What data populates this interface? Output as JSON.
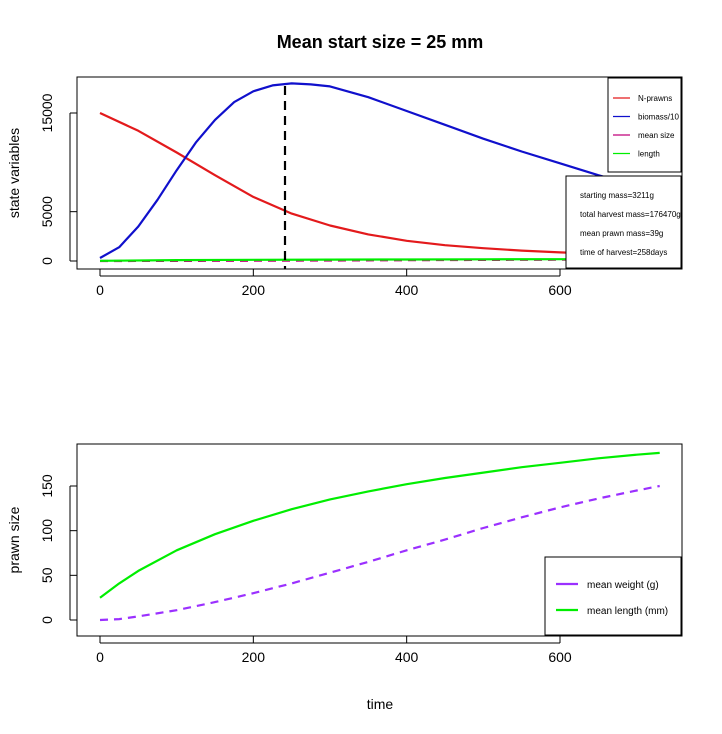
{
  "title": "Mean start size = 25 mm",
  "colors": {
    "n_prawns": "#e31a1c",
    "biomass": "#1010cc",
    "mean_size": "#c0007a",
    "length": "#00ee00",
    "weight": "#9b30ff"
  },
  "chart_data": [
    {
      "type": "line",
      "ylabel": "state variables",
      "xlim": [
        0,
        730
      ],
      "ylim": [
        0,
        18000
      ],
      "xticks": [
        0,
        200,
        400,
        600
      ],
      "yticks": [
        0,
        5000,
        15000
      ],
      "series": [
        {
          "name": "N-prawns",
          "color": "#e31a1c",
          "style": "solid",
          "x": [
            0,
            50,
            100,
            150,
            200,
            250,
            300,
            350,
            400,
            450,
            500,
            550,
            600,
            650,
            700
          ],
          "y": [
            15000,
            13200,
            11000,
            8700,
            6500,
            4800,
            3600,
            2700,
            2050,
            1600,
            1300,
            1050,
            870,
            730,
            620
          ]
        },
        {
          "name": "biomass/10",
          "color": "#1010cc",
          "style": "solid",
          "x": [
            0,
            25,
            50,
            75,
            100,
            125,
            150,
            175,
            200,
            225,
            250,
            275,
            300,
            350,
            400,
            450,
            500,
            550,
            600,
            650,
            700
          ],
          "y": [
            300,
            1400,
            3500,
            6200,
            9200,
            12000,
            14300,
            16100,
            17200,
            17800,
            18000,
            17900,
            17700,
            16600,
            15200,
            13800,
            12400,
            11100,
            9900,
            8700,
            7600
          ]
        },
        {
          "name": "mean size",
          "color": "#c0007a",
          "style": "dashed",
          "x": [
            0,
            100,
            200,
            300,
            400,
            500,
            600,
            700
          ],
          "y": [
            1,
            8,
            27,
            55,
            80,
            110,
            135,
            150
          ]
        },
        {
          "name": "length",
          "color": "#00ee00",
          "style": "solid",
          "x": [
            0,
            100,
            200,
            300,
            400,
            500,
            600,
            700
          ],
          "y": [
            25,
            90,
            120,
            140,
            155,
            168,
            178,
            186
          ]
        }
      ],
      "harvest_marker_x": 240,
      "legend_position": "top-right",
      "info": {
        "starting_mass": "starting mass=3211g",
        "total_harvest_mass": "total harvest mass=176470g",
        "mean_prawn_mass": "mean prawn mass=39g",
        "time_of_harvest": "time of harvest=258days"
      }
    },
    {
      "type": "line",
      "xlabel": "time",
      "ylabel": "prawn size",
      "xlim": [
        0,
        730
      ],
      "ylim": [
        0,
        190
      ],
      "xticks": [
        0,
        200,
        400,
        600
      ],
      "yticks": [
        0,
        50,
        100,
        150
      ],
      "series": [
        {
          "name": "mean weight (g)",
          "color": "#9b30ff",
          "style": "dashed",
          "x": [
            0,
            25,
            50,
            100,
            150,
            200,
            250,
            300,
            350,
            400,
            450,
            500,
            550,
            600,
            650,
            700,
            730
          ],
          "y": [
            0,
            1,
            4,
            11,
            20,
            30,
            41,
            53,
            65,
            78,
            90,
            103,
            115,
            126,
            136,
            145,
            150
          ]
        },
        {
          "name": "mean length (mm)",
          "color": "#00ee00",
          "style": "solid",
          "x": [
            0,
            25,
            50,
            100,
            150,
            200,
            250,
            300,
            350,
            400,
            450,
            500,
            550,
            600,
            650,
            700,
            730
          ],
          "y": [
            25,
            41,
            55,
            78,
            96,
            111,
            124,
            135,
            144,
            152,
            159,
            165,
            171,
            176,
            181,
            185,
            187
          ]
        }
      ],
      "legend_position": "bottom-right"
    }
  ]
}
